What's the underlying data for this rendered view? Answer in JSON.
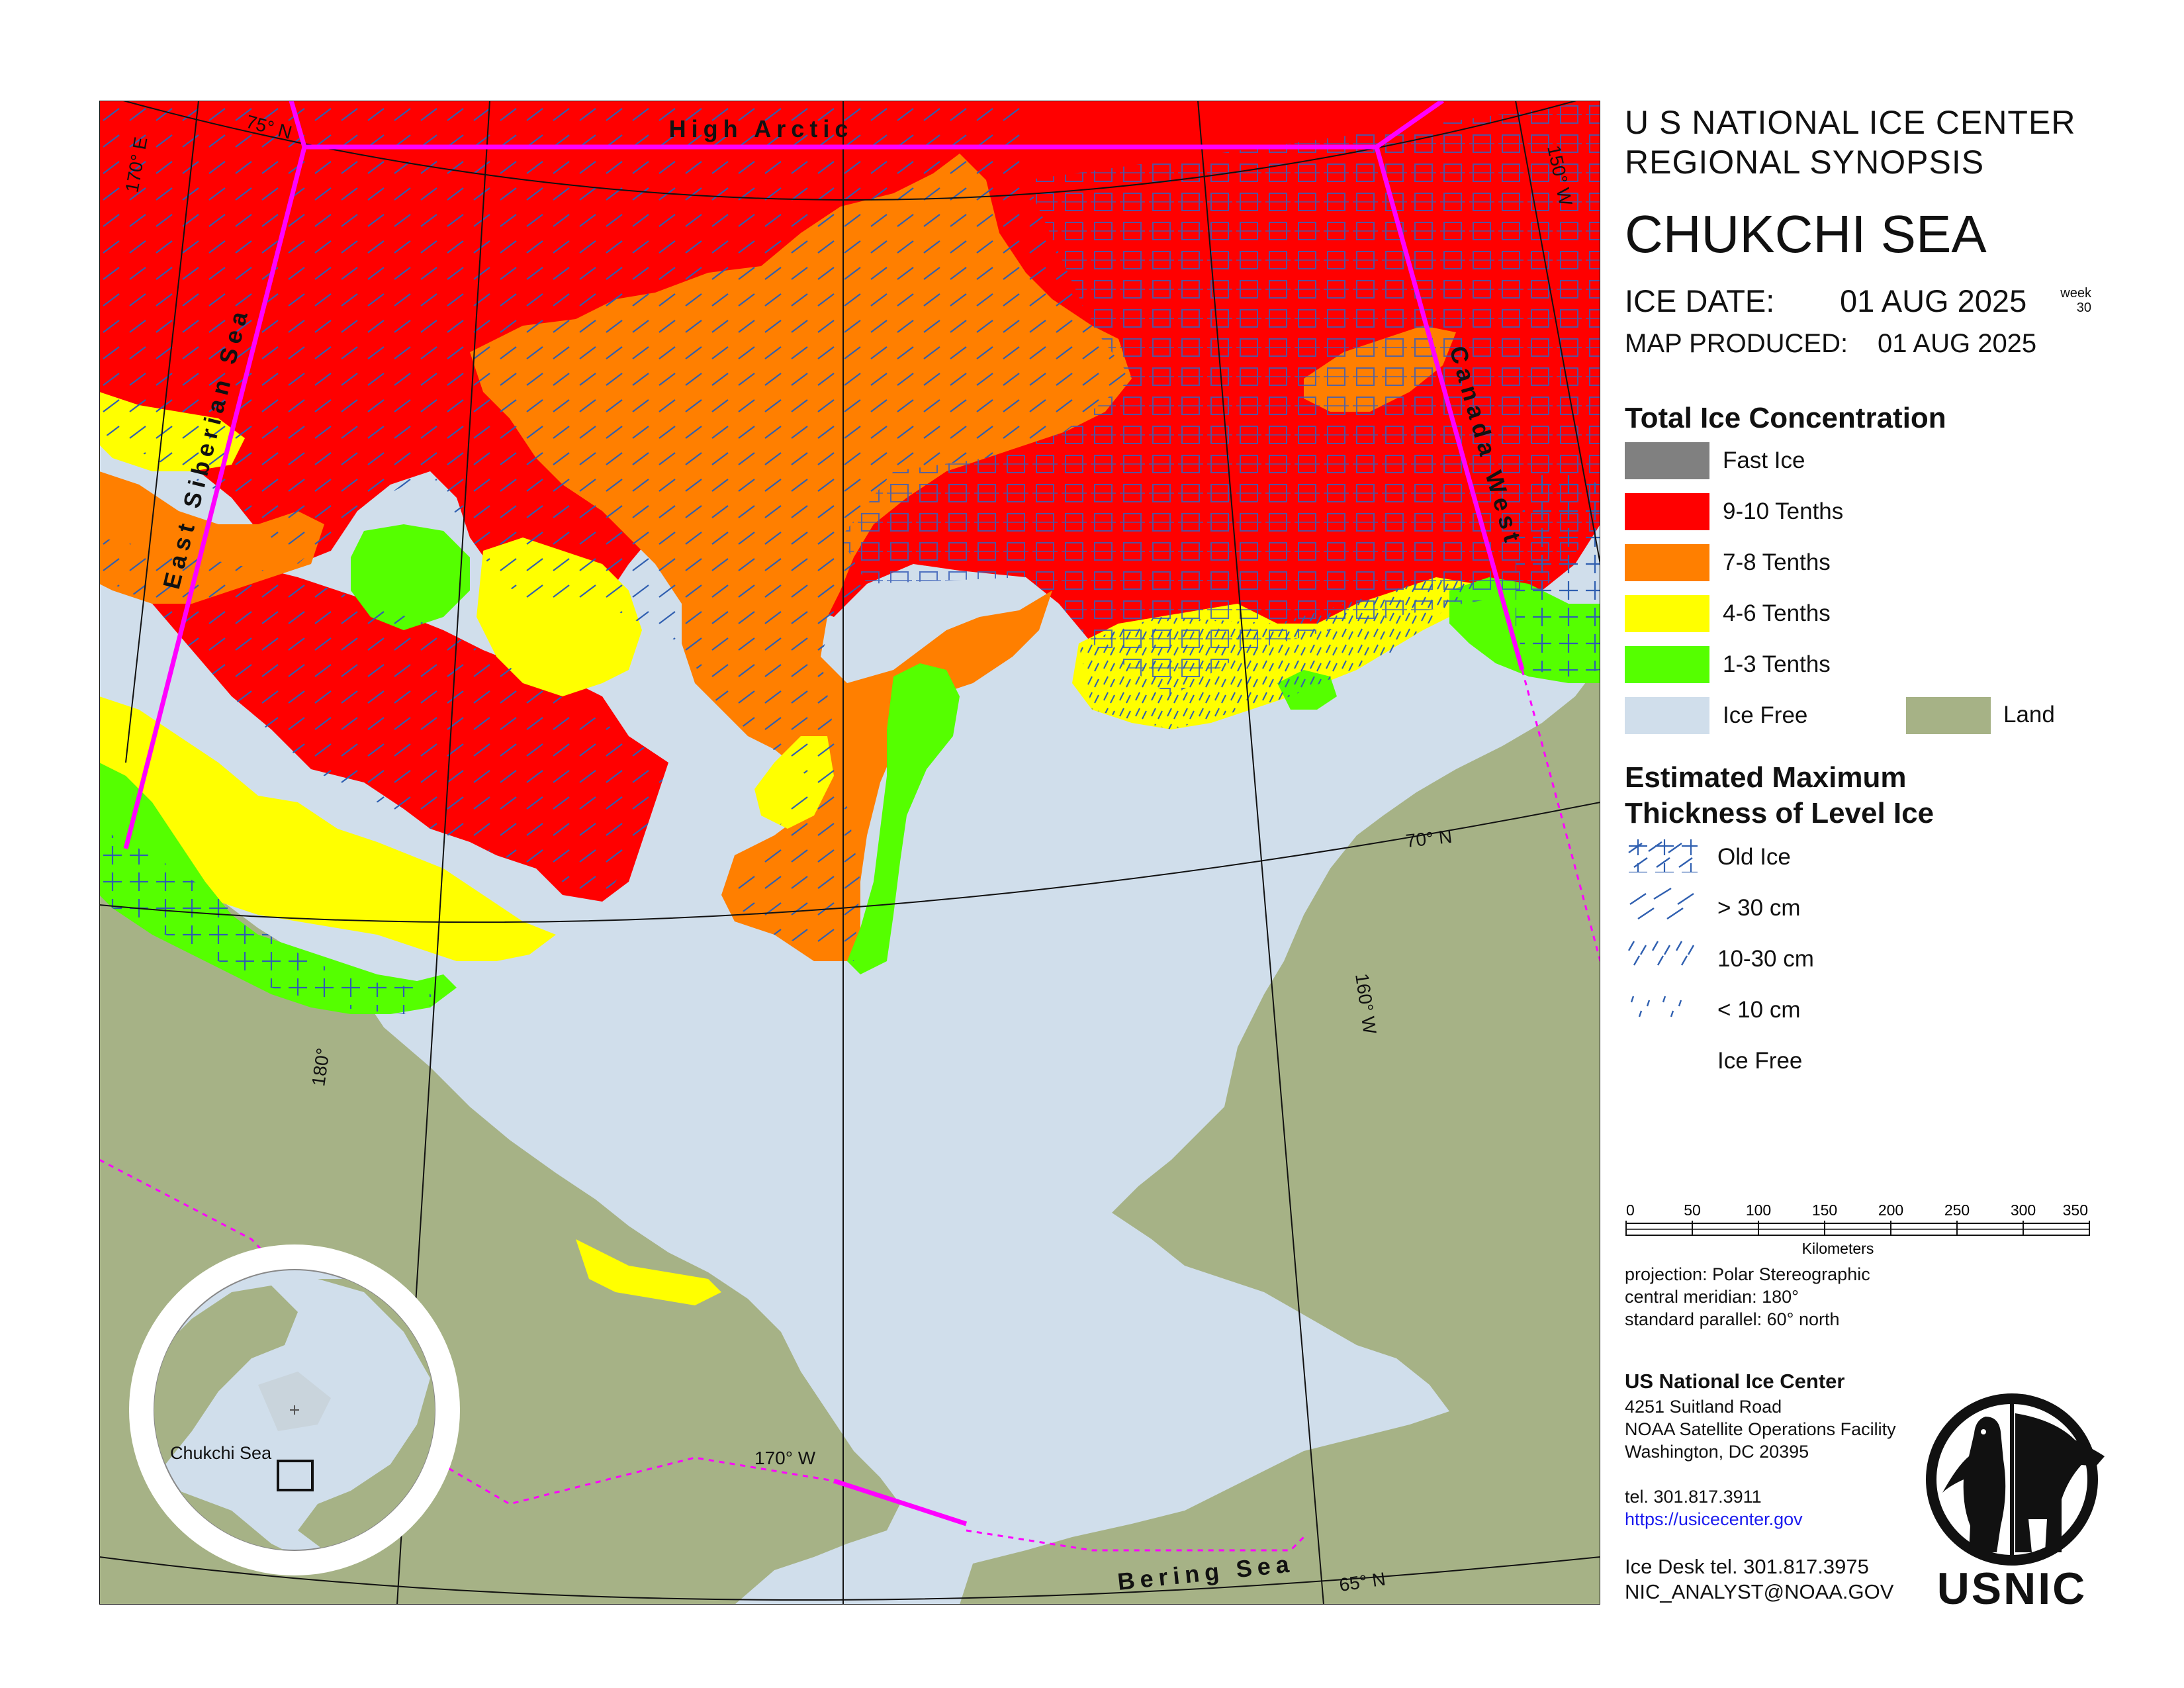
{
  "header": {
    "line1": "U S NATIONAL ICE CENTER",
    "line2": "REGIONAL SYNOPSIS",
    "title": "CHUKCHI SEA",
    "ice_date_label": "ICE DATE:",
    "ice_date_value": "01 AUG 2025",
    "week_label": "week",
    "week_number": "30",
    "map_produced_label": "MAP PRODUCED:",
    "map_produced_value": "01 AUG 2025"
  },
  "legend_concentration": {
    "title": "Total Ice Concentration",
    "items": [
      {
        "label": "Fast Ice",
        "color": "#808080"
      },
      {
        "label": "9-10 Tenths",
        "color": "#ff0000"
      },
      {
        "label": "7-8 Tenths",
        "color": "#ff7f00"
      },
      {
        "label": "4-6 Tenths",
        "color": "#ffff00"
      },
      {
        "label": "1-3 Tenths",
        "color": "#55ff00"
      },
      {
        "label": "Ice Free",
        "color": "#d0deeb"
      }
    ],
    "land": {
      "label": "Land",
      "color": "#a6b286"
    }
  },
  "legend_thickness": {
    "title_line1": "Estimated Maximum",
    "title_line2": "Thickness of Level Ice",
    "items": [
      "Old Ice",
      "> 30 cm",
      "10-30 cm",
      "< 10 cm",
      "Ice Free"
    ]
  },
  "scale_bar": {
    "ticks": [
      "0",
      "50",
      "100",
      "150",
      "200",
      "250",
      "300",
      "350"
    ],
    "unit": "Kilometers"
  },
  "projection": {
    "line1": "projection: Polar Stereographic",
    "line2": "central meridian: 180°",
    "line3": "standard parallel:  60° north"
  },
  "contact": {
    "org": "US National Ice Center",
    "address1": "4251 Suitland Road",
    "address2": "NOAA Satellite Operations Facility",
    "address3": "Washington, DC  20395",
    "tel": "tel. 301.817.3911",
    "url": "https://usicecenter.gov",
    "ice_desk": "Ice Desk tel. 301.817.3975",
    "email": "NIC_ANALYST@NOAA.GOV"
  },
  "logo": {
    "text": "USNIC"
  },
  "map": {
    "region_labels": {
      "high_arctic": "High  Arctic",
      "east_siberian": "East  Siberian  Sea",
      "canada_west": "Canada  West",
      "bering": "Bering  Sea"
    },
    "graticule_labels": {
      "lat75": "75° N",
      "lat70": "70° N",
      "lat65": "65° N",
      "lon170e": "170° E",
      "lon180": "180°",
      "lon170w": "170° W",
      "lon160w": "160° W",
      "lon150w": "150° W"
    },
    "inset_label": "Chukchi Sea"
  }
}
